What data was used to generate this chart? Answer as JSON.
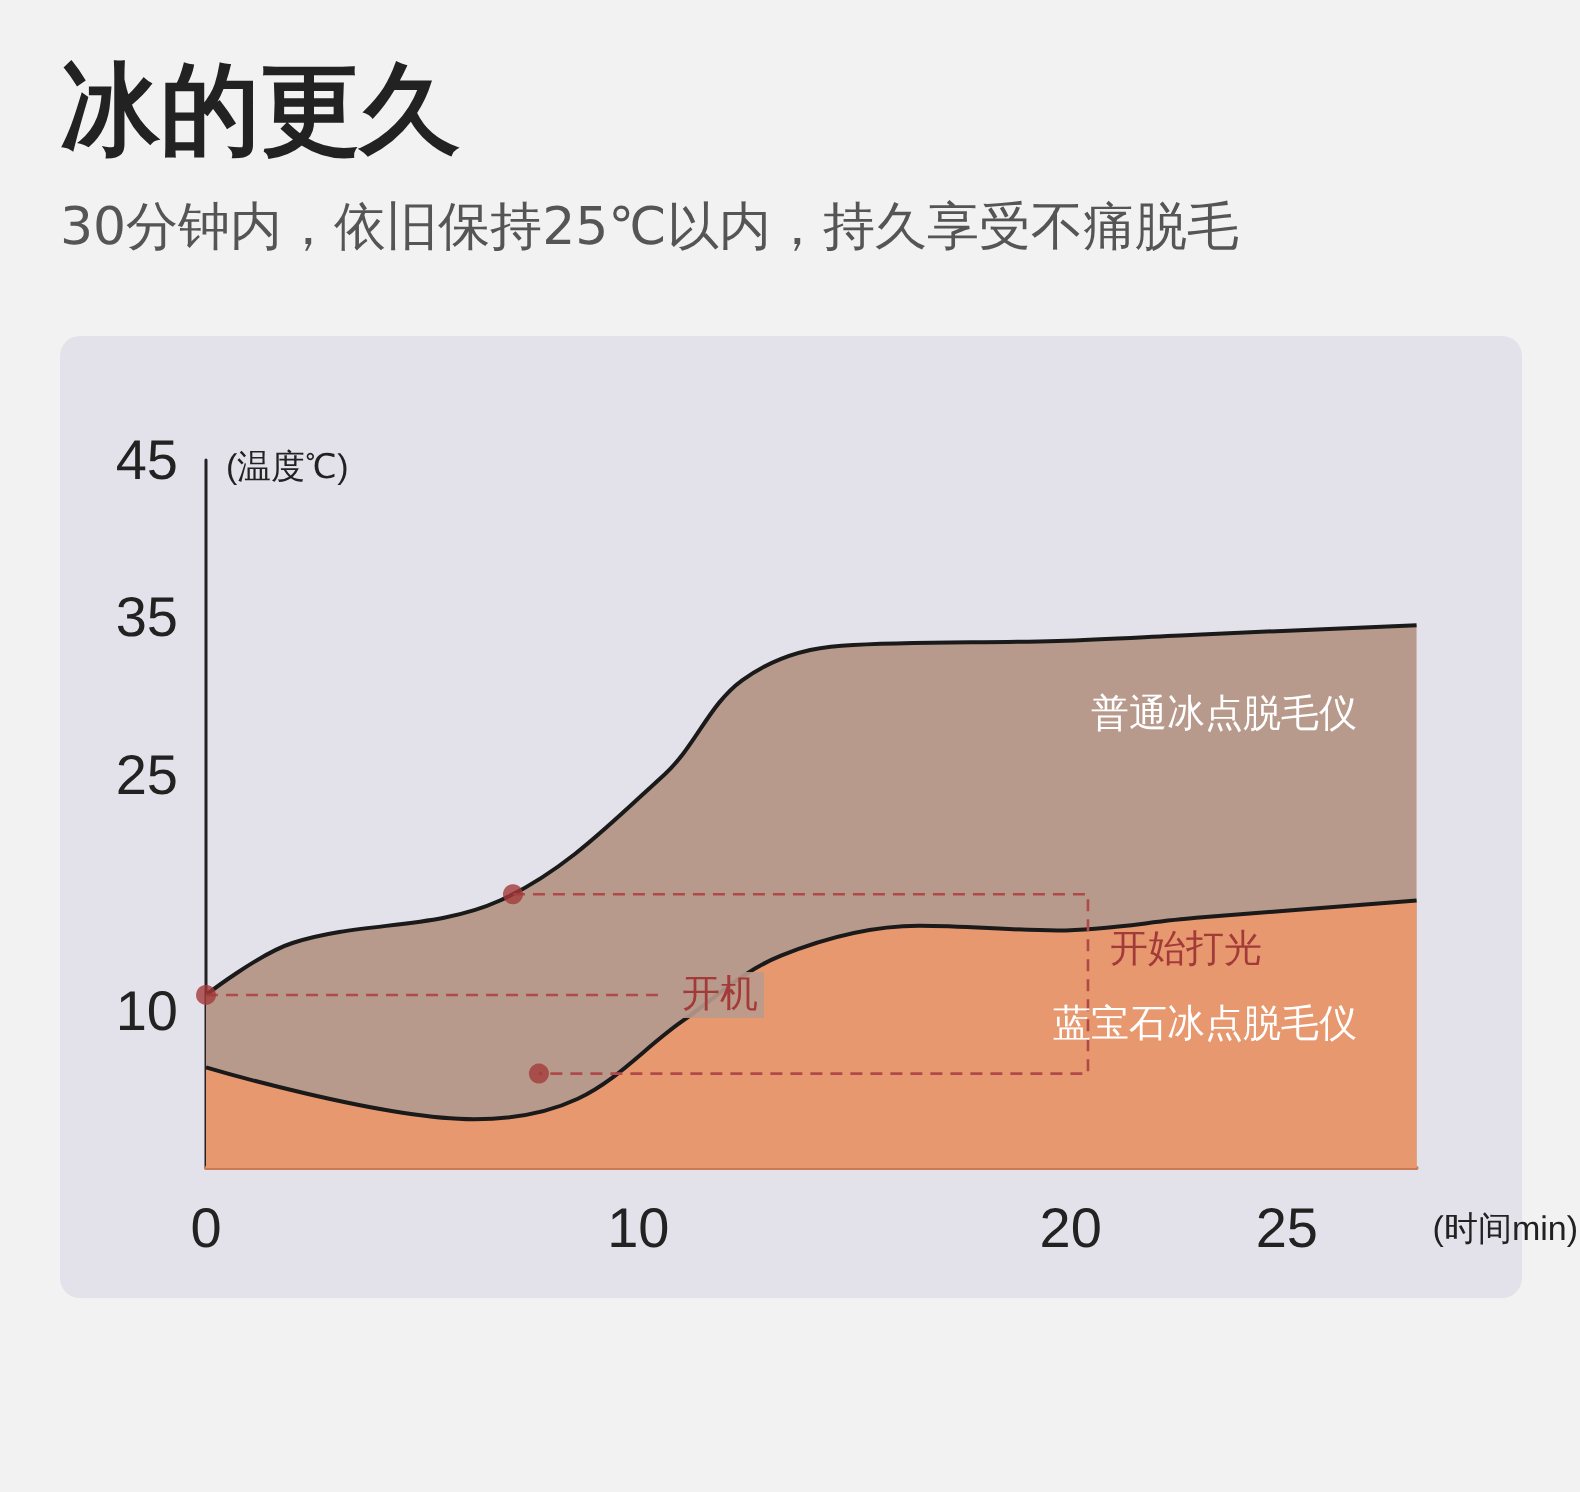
{
  "chart_data": {
    "type": "area",
    "title": "冰的更久",
    "subtitle": "30分钟内，依旧保持25℃以内，持久享受不痛脱毛",
    "xlabel": "(时间min)",
    "ylabel": "(温度℃)",
    "xlim": [
      0,
      28
    ],
    "xticks": [
      0,
      10,
      20,
      25
    ],
    "ylim": [
      0,
      45
    ],
    "yticks": [
      10,
      25,
      35,
      45
    ],
    "grid": false,
    "legend": false,
    "marker": "none",
    "series": [
      {
        "name": "普通冰点脱毛仪",
        "color": "#b89a8c",
        "x": [
          0,
          2,
          6.8,
          10.6,
          12.4,
          14.7,
          19.7,
          22.9,
          28
        ],
        "values": [
          11,
          14.3,
          17,
          25,
          31,
          33.2,
          33.5,
          33.9,
          34.5
        ]
      },
      {
        "name": "蓝宝石冰点脱毛仪",
        "color": "#e8986e",
        "x": [
          0,
          6.2,
          8.6,
          11,
          13.3,
          16.5,
          19.7,
          22.9,
          28
        ],
        "values": [
          6.4,
          3.1,
          4.4,
          9.3,
          13.5,
          15.4,
          15.1,
          15.9,
          17
        ]
      },
      {
        "type": "line",
        "color": "#b04a4a",
        "line_style": "dashed",
        "marker": "none",
        "x": [
          0,
          10.5
        ],
        "values": [
          11,
          11
        ]
      },
      {
        "type": "line",
        "color": "#b04a4a",
        "line_style": "dashed",
        "marker": "none",
        "x": [
          7.1,
          20.4,
          20.4,
          7.7
        ],
        "values": [
          17.4,
          17.4,
          6,
          6
        ]
      },
      {
        "type": "scatter",
        "color": "#a33a3a",
        "marker": "circle",
        "x": [
          0,
          7.1,
          7.7
        ],
        "values": [
          11,
          17.4,
          6
        ]
      }
    ],
    "annotations": [
      "开机",
      "开始打光"
    ]
  }
}
